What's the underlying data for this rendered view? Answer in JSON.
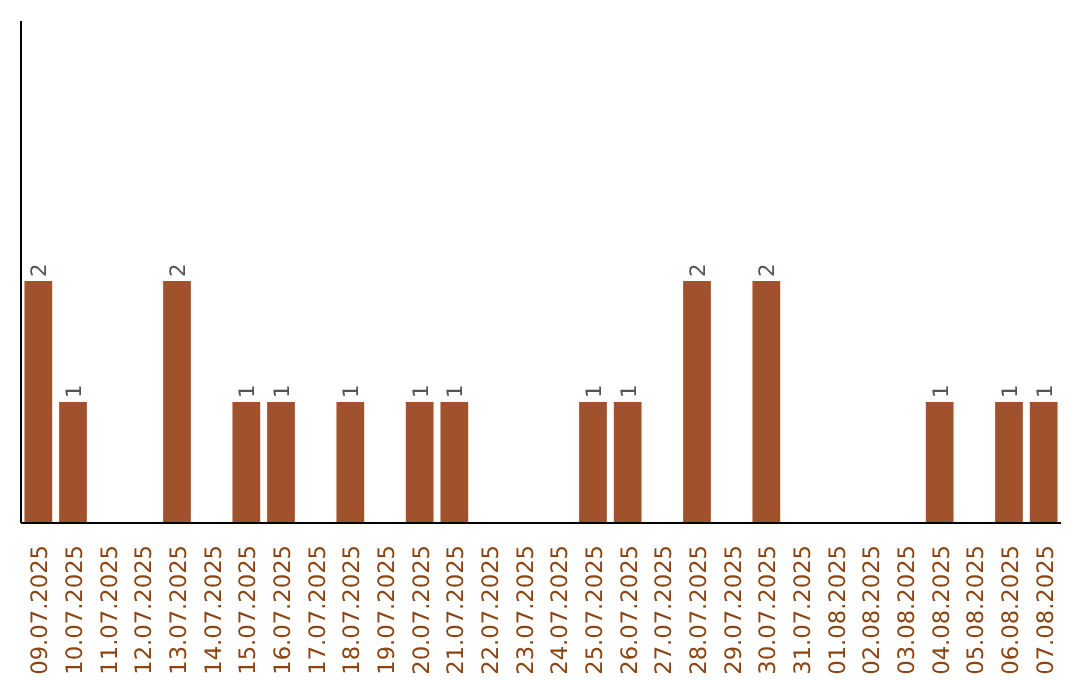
{
  "chart_data": {
    "type": "bar",
    "categories": [
      "09.07.2025",
      "10.07.2025",
      "11.07.2025",
      "12.07.2025",
      "13.07.2025",
      "14.07.2025",
      "15.07.2025",
      "16.07.2025",
      "17.07.2025",
      "18.07.2025",
      "19.07.2025",
      "20.07.2025",
      "21.07.2025",
      "22.07.2025",
      "23.07.2025",
      "24.07.2025",
      "25.07.2025",
      "26.07.2025",
      "27.07.2025",
      "28.07.2025",
      "29.07.2025",
      "30.07.2025",
      "31.07.2025",
      "01.08.2025",
      "02.08.2025",
      "03.08.2025",
      "04.08.2025",
      "05.08.2025",
      "06.08.2025",
      "07.08.2025"
    ],
    "values": [
      2,
      1,
      0,
      0,
      2,
      0,
      1,
      1,
      0,
      1,
      0,
      1,
      1,
      0,
      0,
      0,
      1,
      1,
      0,
      2,
      0,
      2,
      0,
      0,
      0,
      0,
      1,
      0,
      1,
      1
    ],
    "value_labels": [
      "2",
      "1",
      null,
      null,
      "2",
      null,
      "1",
      "1",
      null,
      "1",
      null,
      "1",
      "1",
      null,
      null,
      null,
      "1",
      "1",
      null,
      "2",
      null,
      "2",
      null,
      null,
      null,
      null,
      "1",
      null,
      "1",
      "1"
    ],
    "color": "#a0522d",
    "ylim": [
      0,
      4.15
    ],
    "tick_labels": "x",
    "grid": false
  }
}
